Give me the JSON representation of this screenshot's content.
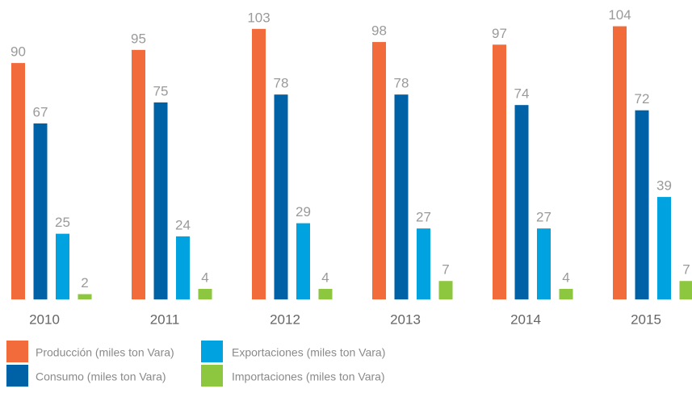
{
  "chart_data": {
    "type": "bar",
    "categories": [
      "2010",
      "2011",
      "2012",
      "2013",
      "2014",
      "2015"
    ],
    "series": [
      {
        "name": "Producción (miles ton Vara)",
        "color": "#f26b3a",
        "values": [
          90,
          95,
          103,
          98,
          97,
          104
        ]
      },
      {
        "name": "Consumo (miles ton Vara)",
        "color": "#0062a6",
        "values": [
          67,
          75,
          78,
          78,
          74,
          72
        ]
      },
      {
        "name": "Exportaciones (miles ton Vara)",
        "color": "#00a3e0",
        "values": [
          25,
          24,
          29,
          27,
          27,
          39
        ]
      },
      {
        "name": "Importaciones (miles ton Vara)",
        "color": "#8dc63f",
        "values": [
          2,
          4,
          4,
          7,
          4,
          7
        ]
      }
    ],
    "ylim": [
      0,
      114
    ]
  }
}
